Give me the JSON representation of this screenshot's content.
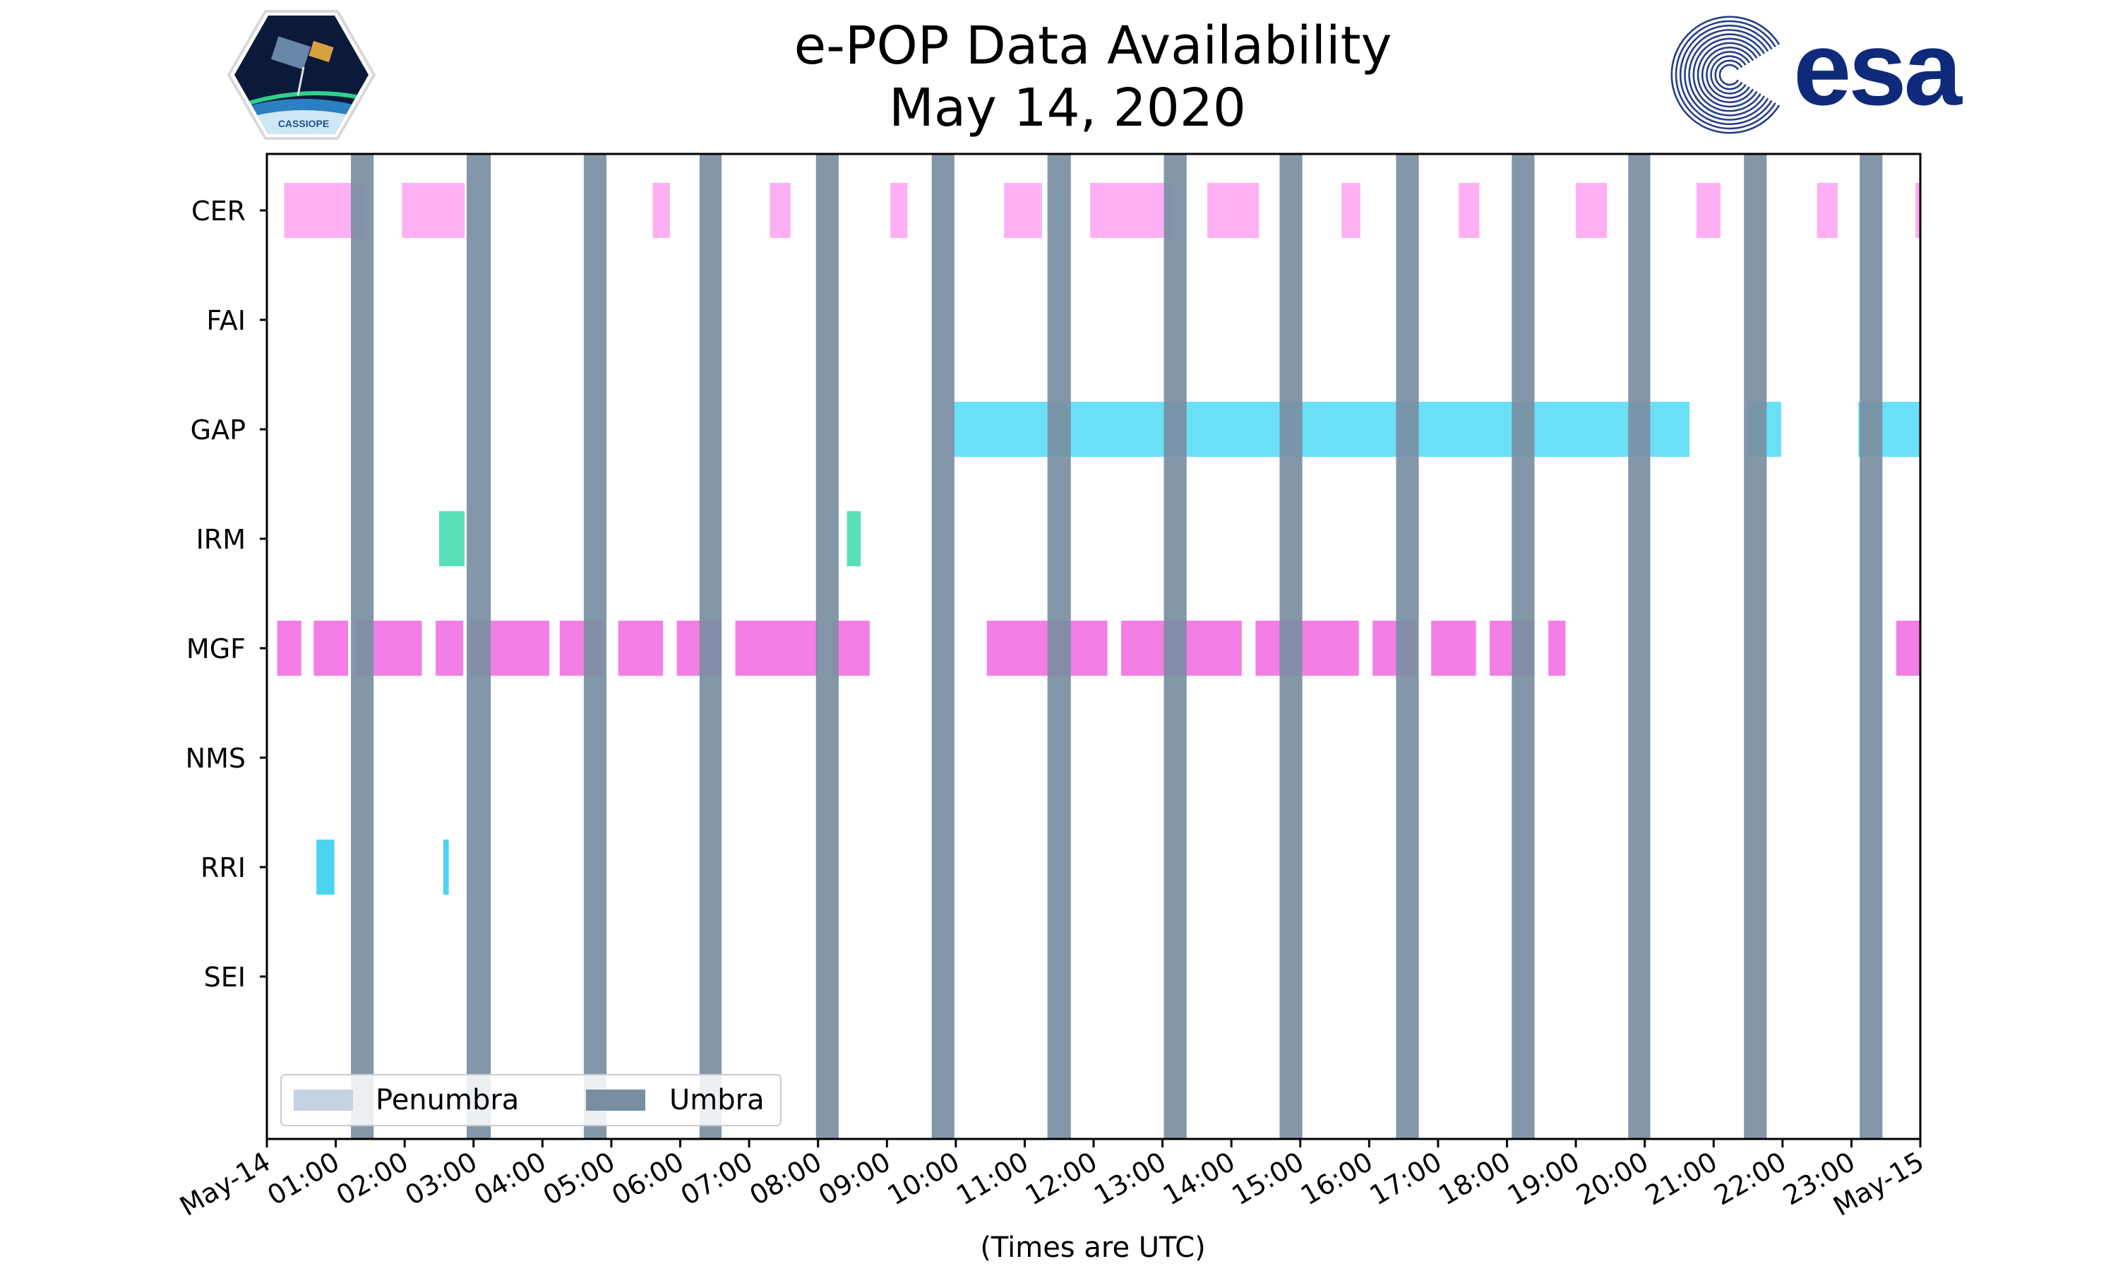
{
  "chart_data": {
    "type": "timeline",
    "title": [
      "e-POP Data Availability",
      "May 14, 2020"
    ],
    "xlabel": "(Times are UTC)",
    "xlim": [
      0,
      24
    ],
    "x_ticks": [
      {
        "hour": 0,
        "label": "May-14"
      },
      {
        "hour": 1,
        "label": "01:00"
      },
      {
        "hour": 2,
        "label": "02:00"
      },
      {
        "hour": 3,
        "label": "03:00"
      },
      {
        "hour": 4,
        "label": "04:00"
      },
      {
        "hour": 5,
        "label": "05:00"
      },
      {
        "hour": 6,
        "label": "06:00"
      },
      {
        "hour": 7,
        "label": "07:00"
      },
      {
        "hour": 8,
        "label": "08:00"
      },
      {
        "hour": 9,
        "label": "09:00"
      },
      {
        "hour": 10,
        "label": "10:00"
      },
      {
        "hour": 11,
        "label": "11:00"
      },
      {
        "hour": 12,
        "label": "12:00"
      },
      {
        "hour": 13,
        "label": "13:00"
      },
      {
        "hour": 14,
        "label": "14:00"
      },
      {
        "hour": 15,
        "label": "15:00"
      },
      {
        "hour": 16,
        "label": "16:00"
      },
      {
        "hour": 17,
        "label": "17:00"
      },
      {
        "hour": 18,
        "label": "18:00"
      },
      {
        "hour": 19,
        "label": "19:00"
      },
      {
        "hour": 20,
        "label": "20:00"
      },
      {
        "hour": 21,
        "label": "21:00"
      },
      {
        "hour": 22,
        "label": "22:00"
      },
      {
        "hour": 23,
        "label": "23:00"
      },
      {
        "hour": 24,
        "label": "May-15"
      }
    ],
    "instruments": [
      "CER",
      "FAI",
      "GAP",
      "IRM",
      "MGF",
      "NMS",
      "RRI",
      "SEI"
    ],
    "colors": {
      "CER": "#ff9cf2",
      "FAI": "#c080ff",
      "GAP": "#45d8f6",
      "IRM": "#2fd8a6",
      "MGF": "#f05ee0",
      "NMS": "#ffa040",
      "RRI": "#1ec8ee",
      "SEI": "#a0d040",
      "penumbra": "#c5d2e4",
      "umbra": "#7a8ea2"
    },
    "intervals": {
      "CER": [
        [
          0.25,
          1.43
        ],
        [
          1.96,
          2.87
        ],
        [
          5.6,
          5.85
        ],
        [
          7.3,
          7.6
        ],
        [
          9.05,
          9.3
        ],
        [
          10.7,
          11.25
        ],
        [
          11.95,
          13.15
        ],
        [
          13.65,
          14.4
        ],
        [
          15.6,
          15.87
        ],
        [
          17.3,
          17.6
        ],
        [
          19.0,
          19.45
        ],
        [
          20.75,
          21.1
        ],
        [
          22.5,
          22.8
        ],
        [
          23.93,
          24.0
        ]
      ],
      "FAI": [],
      "GAP": [
        [
          9.95,
          18.85
        ],
        [
          18.85,
          20.65
        ],
        [
          21.5,
          21.98
        ],
        [
          23.1,
          24.0
        ]
      ],
      "IRM": [
        [
          2.5,
          2.87
        ],
        [
          8.42,
          8.62
        ]
      ],
      "MGF": [
        [
          0.15,
          0.5
        ],
        [
          0.68,
          1.18
        ],
        [
          1.3,
          2.25
        ],
        [
          2.45,
          2.85
        ],
        [
          2.95,
          4.1
        ],
        [
          4.25,
          4.9
        ],
        [
          5.1,
          5.75
        ],
        [
          5.95,
          6.6
        ],
        [
          6.8,
          8.0
        ],
        [
          8.2,
          8.75
        ],
        [
          10.45,
          12.2
        ],
        [
          12.4,
          14.15
        ],
        [
          14.35,
          15.85
        ],
        [
          16.05,
          16.7
        ],
        [
          16.9,
          17.55
        ],
        [
          17.75,
          18.4
        ],
        [
          18.6,
          18.85
        ],
        [
          23.65,
          24.0
        ]
      ],
      "NMS": [],
      "RRI": [
        [
          0.72,
          0.98
        ],
        [
          2.56,
          2.64
        ]
      ],
      "SEI": []
    },
    "umbra": [
      [
        1.22,
        1.55
      ],
      [
        2.9,
        3.25
      ],
      [
        4.6,
        4.93
      ],
      [
        6.28,
        6.6
      ],
      [
        7.97,
        8.3
      ],
      [
        9.65,
        9.98
      ],
      [
        11.33,
        11.67
      ],
      [
        13.02,
        13.35
      ],
      [
        14.7,
        15.03
      ],
      [
        16.39,
        16.72
      ],
      [
        18.07,
        18.4
      ],
      [
        19.76,
        20.08
      ],
      [
        21.44,
        21.77
      ],
      [
        23.12,
        23.45
      ]
    ],
    "penumbra": [],
    "legend": {
      "position": "lower-left",
      "entries": [
        "Penumbra",
        "Umbra"
      ]
    }
  },
  "logos": {
    "left": {
      "name": "CASSIOPE mission patch",
      "text": "CASSIOPE"
    },
    "right": {
      "name": "esa logo",
      "text": "esa",
      "color": "#0f2a7a"
    }
  }
}
